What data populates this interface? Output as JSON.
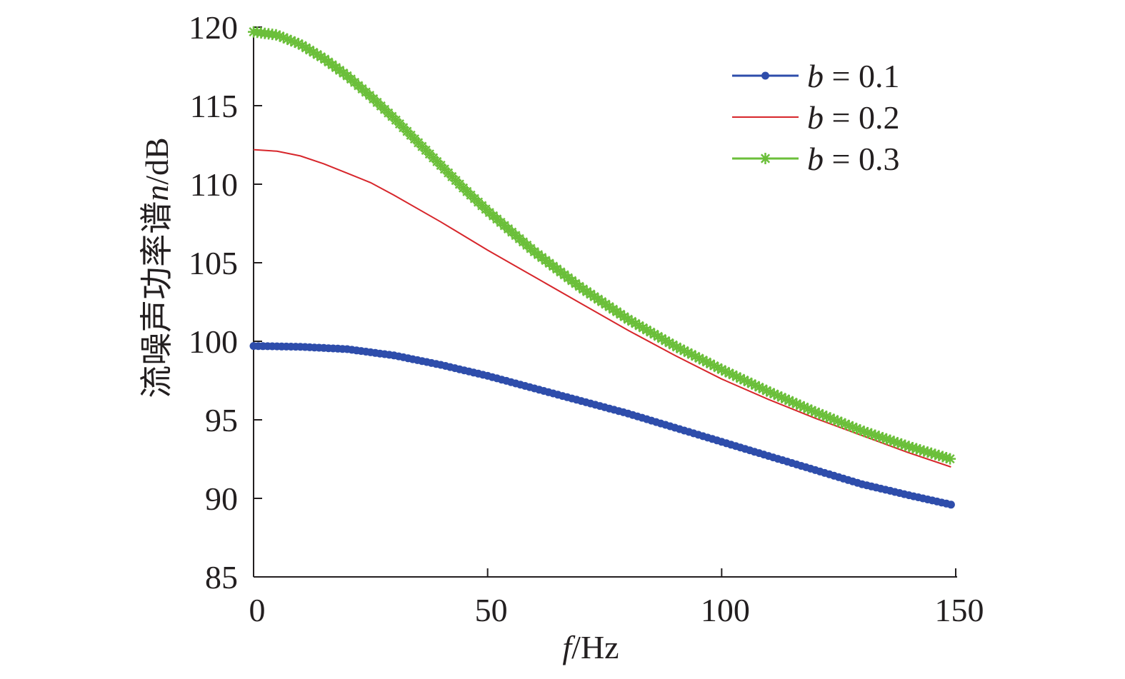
{
  "chart_data": {
    "type": "line",
    "xlabel": {
      "italic": "f",
      "rest": "/Hz"
    },
    "ylabel": {
      "prefix": "流噪声功率谱",
      "italic": "n",
      "suffix": "/dB"
    },
    "xlim": [
      0,
      150
    ],
    "ylim": [
      85,
      120
    ],
    "xticks": [
      "0",
      "50",
      "100",
      "150"
    ],
    "yticks": [
      "85",
      "90",
      "95",
      "100",
      "105",
      "110",
      "115",
      "120"
    ],
    "grid": false,
    "legend_position": "top-right",
    "series": [
      {
        "name": "b = 0.1",
        "name_var": "b",
        "name_rest": " = 0.1",
        "color": "#2e4dab",
        "marker": "dot",
        "x": [
          0,
          10,
          20,
          30,
          40,
          50,
          60,
          70,
          80,
          90,
          100,
          110,
          120,
          130,
          140,
          149
        ],
        "values": [
          99.7,
          99.65,
          99.5,
          99.1,
          98.5,
          97.8,
          97.0,
          96.2,
          95.4,
          94.5,
          93.6,
          92.7,
          91.8,
          90.9,
          90.2,
          89.6
        ]
      },
      {
        "name": "b = 0.2",
        "name_var": "b",
        "name_rest": " = 0.2",
        "color": "#d7262b",
        "marker": "none",
        "x": [
          0,
          5,
          10,
          15,
          20,
          25,
          30,
          40,
          50,
          60,
          70,
          80,
          90,
          100,
          110,
          120,
          130,
          140,
          149
        ],
        "values": [
          112.2,
          112.1,
          111.8,
          111.3,
          110.7,
          110.1,
          109.3,
          107.6,
          105.8,
          104.1,
          102.4,
          100.7,
          99.1,
          97.6,
          96.3,
          95.1,
          94.0,
          92.9,
          92.0
        ]
      },
      {
        "name": "b = 0.3",
        "name_var": "b",
        "name_rest": " = 0.3",
        "color": "#6bbf3a",
        "marker": "star",
        "x": [
          0,
          5,
          10,
          15,
          20,
          25,
          30,
          35,
          40,
          45,
          50,
          60,
          70,
          80,
          90,
          100,
          110,
          120,
          130,
          140,
          149
        ],
        "values": [
          119.7,
          119.5,
          118.9,
          118.0,
          116.9,
          115.6,
          114.2,
          112.7,
          111.2,
          109.7,
          108.3,
          105.7,
          103.4,
          101.4,
          99.7,
          98.2,
          96.8,
          95.5,
          94.3,
          93.3,
          92.5
        ]
      }
    ]
  }
}
